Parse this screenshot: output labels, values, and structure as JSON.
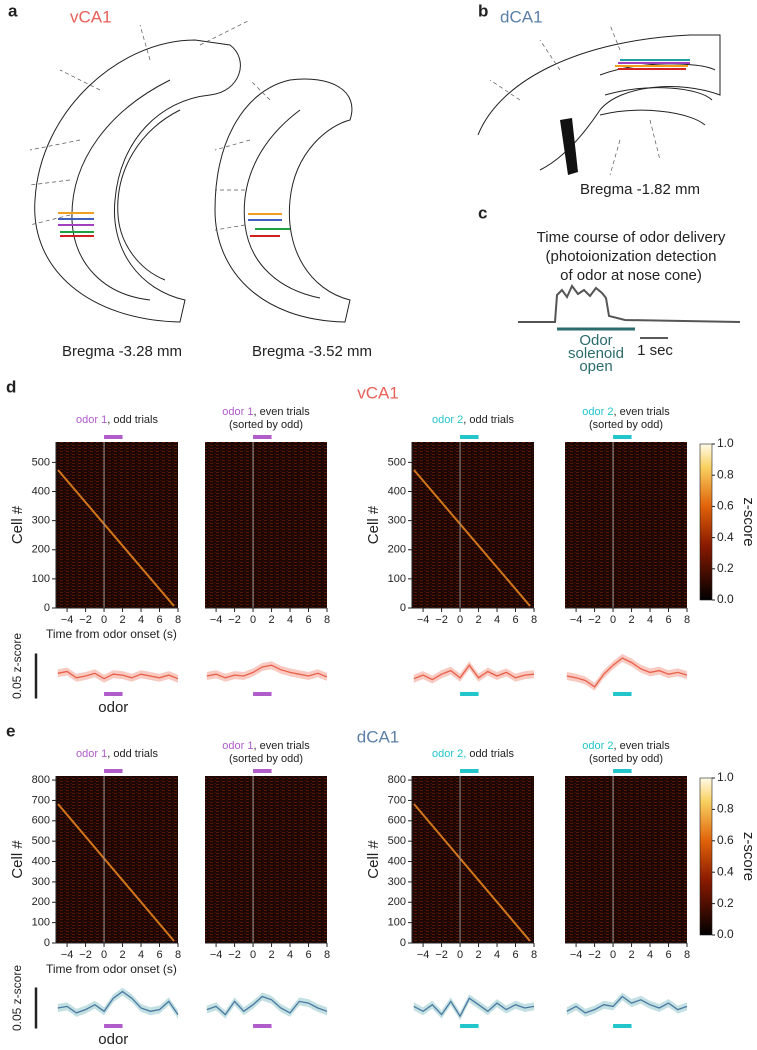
{
  "panel_a": {
    "letter": "a",
    "title": "vCA1",
    "captions": [
      "Bregma -3.28 mm",
      "Bregma -3.52 mm"
    ]
  },
  "panel_b": {
    "letter": "b",
    "title": "dCA1",
    "caption": "Bregma -1.82 mm"
  },
  "panel_c": {
    "letter": "c",
    "title_lines": [
      "Time course of odor delivery",
      "(photoionization detection",
      "of odor at nose cone)"
    ],
    "stimulus_lines": [
      "Odor",
      "solenoid",
      "open"
    ],
    "scale_label": "1 sec"
  },
  "panel_d": {
    "letter": "d",
    "title": "vCA1",
    "title_color": "#e8605a",
    "ylabel": "Cell #",
    "xlabel": "Time from odor onset (s)",
    "xlim": [
      -5.2,
      8
    ],
    "xticks": [
      {
        "value": -4,
        "label": "−4"
      },
      {
        "value": -2,
        "label": "−2"
      },
      0,
      2,
      4,
      6,
      8
    ],
    "ylim": [
      0,
      570
    ],
    "yticks": [
      0,
      100,
      200,
      300,
      400,
      500
    ],
    "odor_window": [
      0,
      2
    ],
    "heatmaps": [
      {
        "odor": "odor 1",
        "color": "#b05cc9",
        "label": ", odd trials"
      },
      {
        "odor": "odor 1",
        "color": "#b05cc9",
        "label": ", even trials",
        "note": "(sorted by odd)"
      },
      {
        "odor": "odor 2",
        "color": "#22c5c9",
        "label": ", odd trials"
      },
      {
        "odor": "odor 2",
        "color": "#22c5c9",
        "label": ", even trials",
        "note": "(sorted by odd)"
      }
    ],
    "colorbar": {
      "label": "z-score",
      "lim": [
        0,
        1
      ],
      "ticks": [
        {
          "value": 0,
          "label": "0.0"
        },
        {
          "value": 0.2,
          "label": "0.2"
        },
        {
          "value": 0.4,
          "label": "0.4"
        },
        {
          "value": 0.6,
          "label": "0.6"
        },
        {
          "value": 0.8,
          "label": "0.8"
        },
        {
          "value": 1,
          "label": "1.0"
        }
      ]
    },
    "trace_color": "#e8604a",
    "band_color": "#f6b3a6",
    "trace_x": [
      -5,
      -4,
      -3,
      -2,
      -1,
      0,
      1,
      2,
      3,
      4,
      5,
      6,
      7,
      8
    ],
    "traces": [
      [
        0.003,
        0.005,
        -0.002,
        0,
        0.003,
        -0.003,
        0.002,
        0.001,
        -0.002,
        0.002,
        0,
        -0.002,
        0.001,
        -0.003
      ],
      [
        0,
        0.002,
        -0.002,
        0.001,
        0,
        0.004,
        0.01,
        0.012,
        0.007,
        0.004,
        0.002,
        0,
        0.003,
        -0.001
      ],
      [
        -0.003,
        0.001,
        -0.004,
        0.002,
        0.006,
        -0.002,
        0.012,
        -0.002,
        0.005,
        0,
        0.004,
        -0.002,
        0.001,
        0.002
      ],
      [
        0,
        -0.002,
        -0.005,
        -0.012,
        0.002,
        0.012,
        0.02,
        0.015,
        0.008,
        0.004,
        0.006,
        0.002,
        0.004,
        0.001
      ]
    ],
    "scale_label": "0.05 z-score",
    "scale_value": 0.05,
    "odor_label": "odor"
  },
  "panel_e": {
    "letter": "e",
    "title": "dCA1",
    "title_color": "#5b7fa8",
    "ylabel": "Cell #",
    "xlabel": "Time from odor onset (s)",
    "xlim": [
      -5.2,
      8
    ],
    "xticks": [
      {
        "value": -4,
        "label": "−4"
      },
      {
        "value": -2,
        "label": "−2"
      },
      0,
      2,
      4,
      6,
      8
    ],
    "ylim": [
      0,
      820
    ],
    "yticks": [
      0,
      100,
      200,
      300,
      400,
      500,
      600,
      700,
      800
    ],
    "odor_window": [
      0,
      2
    ],
    "heatmaps": [
      {
        "odor": "odor 1",
        "color": "#b05cc9",
        "label": ", odd trials"
      },
      {
        "odor": "odor 1",
        "color": "#b05cc9",
        "label": ", even trials",
        "note": "(sorted by odd)"
      },
      {
        "odor": "odor 2,",
        "color": "#22c5c9",
        "label": " odd trials"
      },
      {
        "odor": "odor 2",
        "color": "#22c5c9",
        "label": ", even trials",
        "note": "(sorted by odd)"
      }
    ],
    "colorbar": {
      "label": "z-score",
      "lim": [
        0,
        1
      ],
      "ticks": [
        {
          "value": 0,
          "label": "0.0"
        },
        {
          "value": 0.2,
          "label": "0.2"
        },
        {
          "value": 0.4,
          "label": "0.4"
        },
        {
          "value": 0.6,
          "label": "0.6"
        },
        {
          "value": 0.8,
          "label": "0.8"
        },
        {
          "value": 1,
          "label": "1.0"
        }
      ]
    },
    "trace_color": "#4a78a0",
    "band_color": "#a9d3d6",
    "trace_x": [
      -5,
      -4,
      -3,
      -2,
      -1,
      0,
      1,
      2,
      3,
      4,
      5,
      6,
      7,
      8
    ],
    "traces": [
      [
        0,
        0.002,
        -0.006,
        -0.002,
        0.004,
        -0.004,
        0.012,
        0.02,
        0.012,
        0,
        -0.004,
        -0.002,
        0.008,
        -0.008
      ],
      [
        -0.002,
        0.002,
        -0.008,
        0.008,
        -0.004,
        0.004,
        0.014,
        0.01,
        0,
        -0.006,
        0.008,
        0.006,
        0,
        -0.004
      ],
      [
        0.002,
        -0.004,
        0.004,
        -0.008,
        0.008,
        -0.01,
        0.012,
        0.004,
        -0.004,
        0.006,
        -0.002,
        0.004,
        0,
        0.002
      ],
      [
        -0.004,
        0.002,
        -0.006,
        -0.002,
        0.004,
        0.002,
        0.014,
        0.006,
        0.01,
        0.004,
        0,
        0.006,
        -0.002,
        0.002
      ]
    ],
    "scale_label": "0.05 z-score",
    "scale_value": 0.05,
    "odor_label": "odor"
  }
}
